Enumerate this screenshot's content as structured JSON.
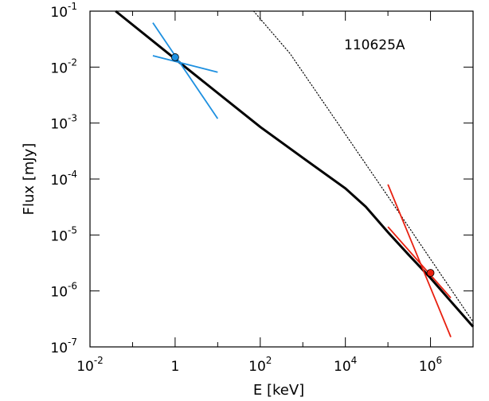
{
  "chart_data": {
    "type": "line",
    "title": "",
    "annotation": "110625A",
    "xlabel": "E [keV]",
    "ylabel": "Flux [mJy]",
    "x_scale": "log",
    "y_scale": "log",
    "xlim": [
      0.01,
      10000000
    ],
    "ylim": [
      1e-07,
      0.1
    ],
    "grid": false,
    "x_ticks": [
      {
        "value": 0.01,
        "base": "10",
        "exp": "-2"
      },
      {
        "value": 1,
        "base": "1",
        "exp": ""
      },
      {
        "value": 100,
        "base": "10",
        "exp": "2"
      },
      {
        "value": 10000,
        "base": "10",
        "exp": "4"
      },
      {
        "value": 1000000,
        "base": "10",
        "exp": "6"
      }
    ],
    "y_ticks": [
      {
        "value": 0.1,
        "base": "10",
        "exp": "-1"
      },
      {
        "value": 0.01,
        "base": "10",
        "exp": "-2"
      },
      {
        "value": 0.001,
        "base": "10",
        "exp": "-3"
      },
      {
        "value": 0.0001,
        "base": "10",
        "exp": "-4"
      },
      {
        "value": 1e-05,
        "base": "10",
        "exp": "-5"
      },
      {
        "value": 1e-06,
        "base": "10",
        "exp": "-6"
      },
      {
        "value": 1e-07,
        "base": "10",
        "exp": "-7"
      }
    ],
    "series": [
      {
        "style": "solid-thick",
        "color": "#000000",
        "x": [
          0.04,
          1,
          100,
          1000,
          10000,
          30000,
          100000,
          300000,
          1000000,
          3000000,
          10000000
        ],
        "y": [
          0.1,
          0.014,
          0.00085,
          0.00024,
          6.8e-05,
          3.2e-05,
          1.12e-05,
          4.5e-06,
          1.7e-06,
          6.5e-07,
          2.3e-07
        ]
      },
      {
        "style": "dotted",
        "color": "#000000",
        "x": [
          70,
          500,
          10000,
          100000,
          1000000,
          10000000
        ],
        "y": [
          0.1,
          0.0175,
          0.00063,
          4.9e-05,
          3.7e-06,
          2.8e-07
        ]
      }
    ],
    "points": [
      {
        "x": 1,
        "y": 0.015,
        "color": "#1e90e0"
      },
      {
        "x": 1000000,
        "y": 2.1e-06,
        "color": "#e82010"
      }
    ],
    "bowties": [
      {
        "color": "#1e90e0",
        "lines": [
          {
            "x": [
              0.3,
              10
            ],
            "y": [
              0.016,
              0.0081
            ]
          },
          {
            "x": [
              0.3,
              10
            ],
            "y": [
              0.062,
              0.0012
            ]
          }
        ]
      },
      {
        "color": "#e82010",
        "lines": [
          {
            "x": [
              100000,
              3000000
            ],
            "y": [
              1.4e-05,
              7.5e-07
            ]
          },
          {
            "x": [
              100000,
              3000000
            ],
            "y": [
              8e-05,
              1.5e-07
            ]
          }
        ]
      }
    ]
  }
}
